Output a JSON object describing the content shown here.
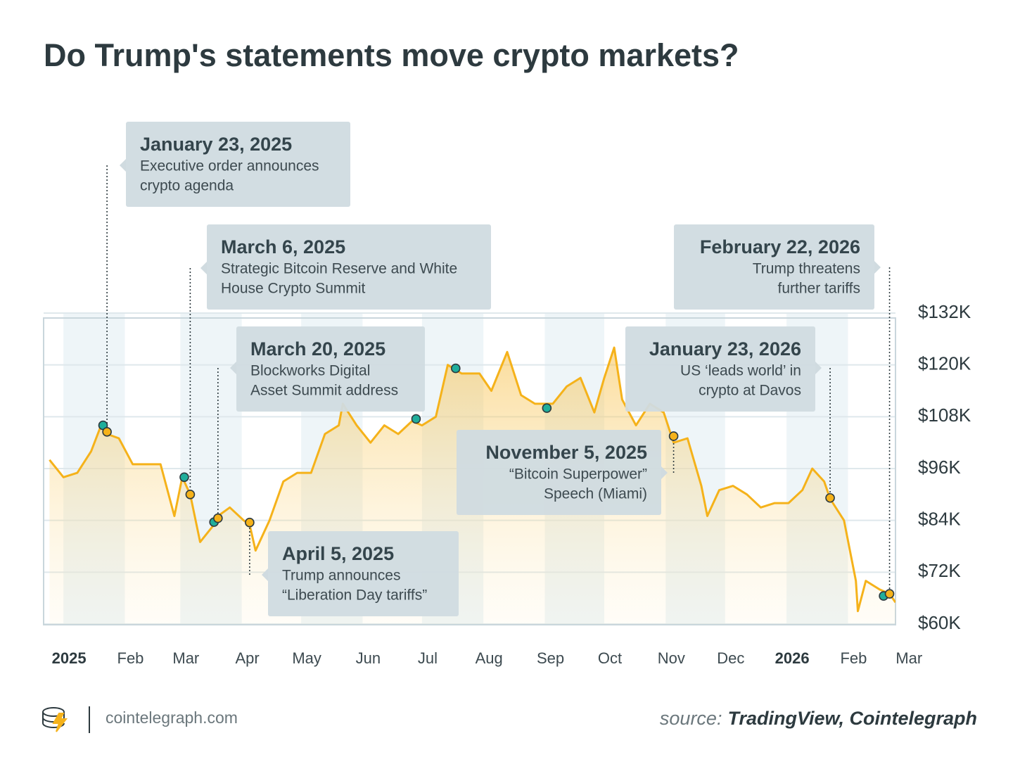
{
  "chart_data": {
    "type": "line",
    "title": "Do Trump's statements move crypto markets?",
    "x": [
      "2024-12-25",
      "2025-01-01",
      "2025-01-08",
      "2025-01-15",
      "2025-01-20",
      "2025-01-23",
      "2025-01-29",
      "2025-02-05",
      "2025-02-12",
      "2025-02-19",
      "2025-02-26",
      "2025-03-02",
      "2025-03-06",
      "2025-03-11",
      "2025-03-18",
      "2025-03-20",
      "2025-03-26",
      "2025-04-02",
      "2025-04-05",
      "2025-04-08",
      "2025-04-15",
      "2025-04-22",
      "2025-04-29",
      "2025-05-06",
      "2025-05-13",
      "2025-05-20",
      "2025-05-22",
      "2025-05-29",
      "2025-06-05",
      "2025-06-12",
      "2025-06-19",
      "2025-06-26",
      "2025-07-01",
      "2025-07-08",
      "2025-07-14",
      "2025-07-21",
      "2025-07-23",
      "2025-07-30",
      "2025-08-05",
      "2025-08-13",
      "2025-08-20",
      "2025-08-27",
      "2025-09-03",
      "2025-09-05",
      "2025-09-12",
      "2025-09-19",
      "2025-09-26",
      "2025-10-01",
      "2025-10-06",
      "2025-10-10",
      "2025-10-17",
      "2025-10-24",
      "2025-10-31",
      "2025-11-05",
      "2025-11-12",
      "2025-11-19",
      "2025-11-22",
      "2025-11-28",
      "2025-12-05",
      "2025-12-12",
      "2025-12-19",
      "2025-12-26",
      "2026-01-02",
      "2026-01-09",
      "2026-01-14",
      "2026-01-20",
      "2026-01-23",
      "2026-01-30",
      "2026-02-05",
      "2026-02-06",
      "2026-02-10",
      "2026-02-17",
      "2026-02-22",
      "2026-02-25"
    ],
    "values": [
      98,
      94,
      95,
      100,
      106,
      104,
      103,
      97,
      97,
      97,
      85,
      94,
      90,
      79,
      83,
      85,
      87,
      84,
      83,
      77,
      84,
      93,
      95,
      95,
      104,
      106,
      111,
      106,
      102,
      106,
      104,
      107,
      106,
      108,
      120,
      118,
      118,
      118,
      114,
      123,
      113,
      111,
      111,
      111,
      115,
      117,
      109,
      117,
      124,
      112,
      106,
      111,
      109,
      102,
      103,
      92,
      85,
      91,
      92,
      90,
      87,
      88,
      88,
      91,
      96,
      93,
      89,
      84,
      70,
      63,
      70,
      68,
      67,
      65
    ],
    "color": "#f5b21a",
    "xlim": [
      "2024-12-22",
      "2026-02-25"
    ],
    "xticks": [
      {
        "value": "2025-01-01",
        "label": "2025"
      },
      {
        "value": "2025-02-01",
        "label": "Feb"
      },
      {
        "value": "2025-03-01",
        "label": "Mar"
      },
      {
        "value": "2025-04-01",
        "label": "Apr"
      },
      {
        "value": "2025-05-01",
        "label": "May"
      },
      {
        "value": "2025-06-01",
        "label": "Jun"
      },
      {
        "value": "2025-07-01",
        "label": "Jul"
      },
      {
        "value": "2025-08-01",
        "label": "Aug"
      },
      {
        "value": "2025-09-01",
        "label": "Sep"
      },
      {
        "value": "2025-10-01",
        "label": "Oct"
      },
      {
        "value": "2025-11-01",
        "label": "Nov"
      },
      {
        "value": "2025-12-01",
        "label": "Dec"
      },
      {
        "value": "2026-01-01",
        "label": "2026"
      },
      {
        "value": "2026-02-01",
        "label": "Feb"
      },
      {
        "value": "2026-03-01",
        "label": "Mar"
      }
    ],
    "ylim": [
      60,
      132
    ],
    "yticks": [
      {
        "value": 60,
        "label": "$60K"
      },
      {
        "value": 72,
        "label": "$72K"
      },
      {
        "value": 84,
        "label": "$84K"
      },
      {
        "value": 96,
        "label": "$96K"
      },
      {
        "value": 108,
        "label": "$108K"
      },
      {
        "value": 120,
        "label": "$120K"
      },
      {
        "value": 132,
        "label": "$132K"
      }
    ],
    "grid": true,
    "markers": [
      {
        "x": "2025-01-21",
        "y": 106,
        "color": "#1fae9b"
      },
      {
        "x": "2025-01-23",
        "y": 104.5,
        "color": "#f5b21a"
      },
      {
        "x": "2025-03-03",
        "y": 94,
        "color": "#1fae9b"
      },
      {
        "x": "2025-03-06",
        "y": 90,
        "color": "#f5b21a"
      },
      {
        "x": "2025-03-18",
        "y": 83.6,
        "color": "#1fae9b"
      },
      {
        "x": "2025-03-20",
        "y": 84.5,
        "color": "#f5b21a"
      },
      {
        "x": "2025-04-05",
        "y": 83.5,
        "color": "#f5b21a"
      },
      {
        "x": "2025-06-28",
        "y": 107.5,
        "color": "#1fae9b"
      },
      {
        "x": "2025-07-18",
        "y": 119.2,
        "color": "#1fae9b"
      },
      {
        "x": "2025-09-02",
        "y": 110,
        "color": "#1fae9b"
      },
      {
        "x": "2025-11-05",
        "y": 103.5,
        "color": "#f5b21a"
      },
      {
        "x": "2026-01-23",
        "y": 89.2,
        "color": "#f5b21a"
      },
      {
        "x": "2026-02-19",
        "y": 66.5,
        "color": "#1fae9b"
      },
      {
        "x": "2026-02-22",
        "y": 67,
        "color": "#f5b21a"
      }
    ],
    "annotations": [
      {
        "x": "2025-01-23",
        "title": "January 23, 2025",
        "text": [
          "Executive order announces",
          "crypto agenda"
        ]
      },
      {
        "x": "2025-03-06",
        "title": "March 6, 2025",
        "text": [
          "Strategic Bitcoin Reserve and White",
          "House Crypto Summit"
        ]
      },
      {
        "x": "2025-03-20",
        "title": "March 20, 2025",
        "text": [
          "Blockworks Digital",
          "Asset Summit address"
        ]
      },
      {
        "x": "2025-04-05",
        "title": "April 5, 2025",
        "text": [
          "Trump announces",
          "“Liberation Day tariffs”"
        ]
      },
      {
        "x": "2025-11-05",
        "title": "November 5, 2025",
        "text": [
          "“Bitcoin Superpower”",
          "Speech (Miami)"
        ]
      },
      {
        "x": "2026-01-23",
        "title": "January 23, 2026",
        "text": [
          "US ‘leads world’ in",
          "crypto at Davos"
        ]
      },
      {
        "x": "2026-02-22",
        "title": "February 22, 2026",
        "text": [
          "Trump threatens",
          "further tariffs"
        ]
      }
    ],
    "brand": "cointelegraph.com",
    "source_label": "source:",
    "source": "TradingView, Cointelegraph"
  }
}
